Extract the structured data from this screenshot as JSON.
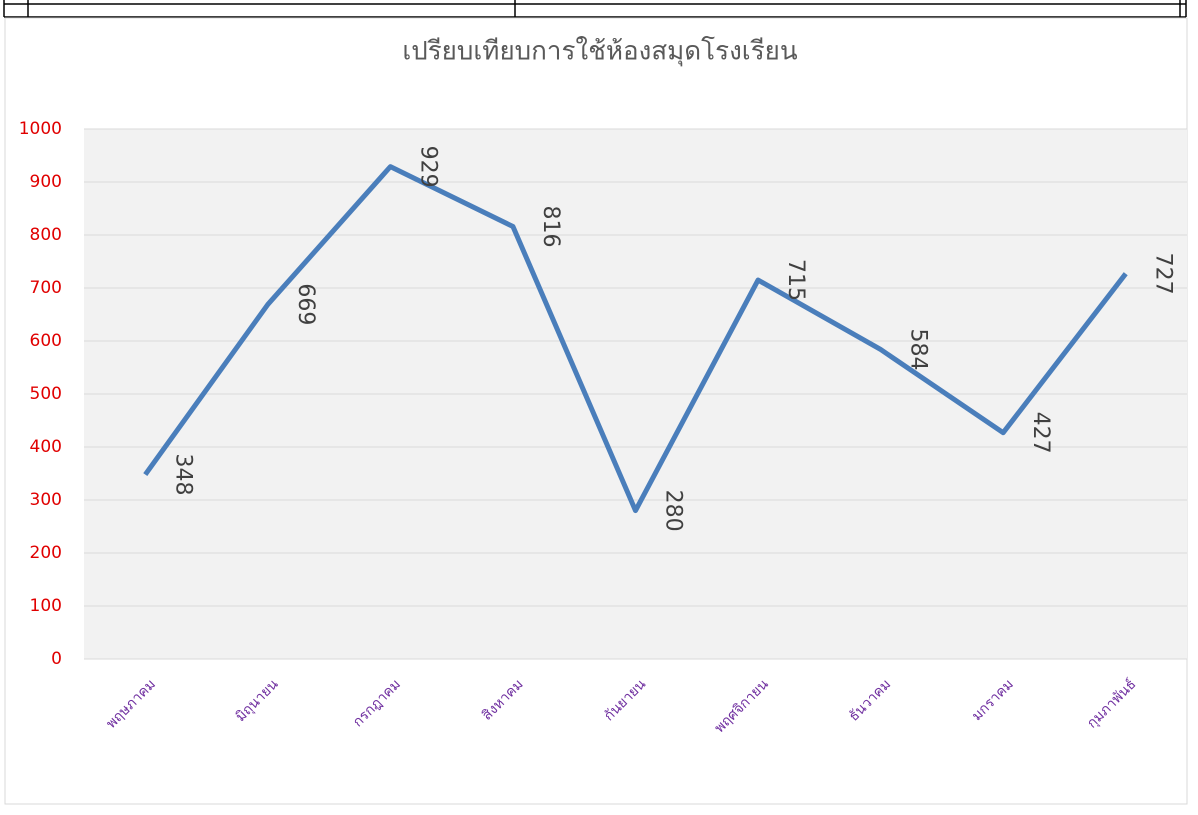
{
  "chart_data": {
    "type": "line",
    "title": "เปรียบเทียบการใช้ห้องสมุดโรงเรียน",
    "categories": [
      "พฤษภาคม",
      "มิถุนายน",
      "กรกฎาคม",
      "สิงหาคม",
      "กันยายน",
      "พฤศจิกายน",
      "ธันวาคม",
      "มกราคม",
      "กุมภาพันธ์"
    ],
    "series": [
      {
        "name": "การใช้ห้องสมุด",
        "color": "#4a7ebb",
        "values": [
          348,
          669,
          929,
          816,
          280,
          715,
          584,
          427,
          727
        ]
      }
    ],
    "ylim": [
      0,
      1000
    ],
    "yticks": [
      0,
      100,
      200,
      300,
      400,
      500,
      600,
      700,
      800,
      900,
      1000
    ],
    "grid": true,
    "data_labels": true
  }
}
